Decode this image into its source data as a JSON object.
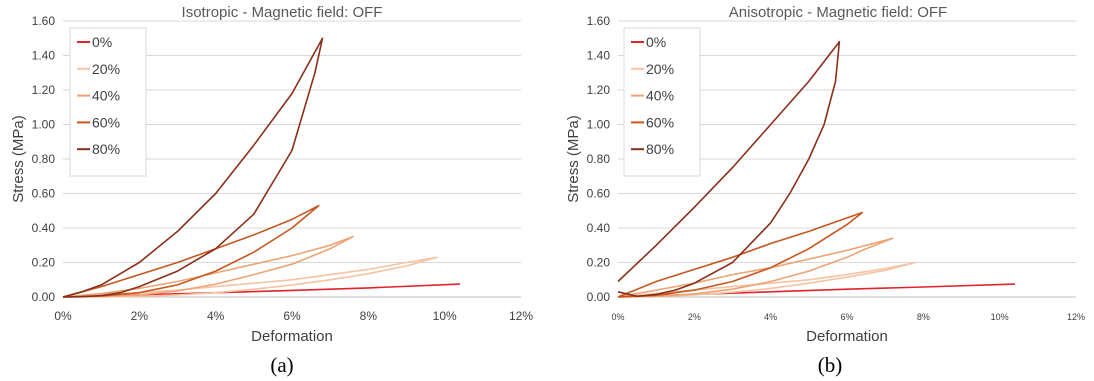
{
  "colors": {
    "0%": "#e0242b",
    "20%": "#f6c4a4",
    "40%": "#eda373",
    "60%": "#c7561f",
    "80%": "#8b2f19"
  },
  "chart_data": [
    {
      "type": "line",
      "title": "Isotropic - Magnetic field: OFF",
      "xlabel": "Deformation",
      "ylabel": "Stress (MPa)",
      "xlim": [
        0,
        0.12
      ],
      "ylim": [
        0,
        1.6
      ],
      "x_ticks": [
        "0%",
        "2%",
        "4%",
        "6%",
        "8%",
        "10%",
        "12%"
      ],
      "y_ticks": [
        "0.00",
        "0.20",
        "0.40",
        "0.60",
        "0.80",
        "1.00",
        "1.20",
        "1.40",
        "1.60"
      ],
      "legend": "top-left",
      "grid": true,
      "caption": "(a)",
      "series": [
        {
          "name": "0%",
          "x": [
            0,
            0.02,
            0.04,
            0.06,
            0.08,
            0.104
          ],
          "y": [
            0,
            0.012,
            0.025,
            0.038,
            0.053,
            0.075
          ]
        },
        {
          "name": "20%",
          "x": [
            0,
            0.01,
            0.02,
            0.03,
            0.04,
            0.05,
            0.06,
            0.07,
            0.08,
            0.09,
            0.098,
            0.09,
            0.08,
            0.07,
            0.06,
            0.05,
            0.04,
            0.03,
            0.02,
            0.01,
            0
          ],
          "y": [
            0,
            0.01,
            0.025,
            0.04,
            0.06,
            0.08,
            0.1,
            0.13,
            0.16,
            0.2,
            0.23,
            0.18,
            0.135,
            0.1,
            0.07,
            0.045,
            0.025,
            0.012,
            0.004,
            0.001,
            0
          ]
        },
        {
          "name": "40%",
          "x": [
            0,
            0.01,
            0.02,
            0.03,
            0.04,
            0.05,
            0.06,
            0.07,
            0.076,
            0.07,
            0.06,
            0.05,
            0.04,
            0.03,
            0.02,
            0.01,
            0
          ],
          "y": [
            0,
            0.02,
            0.05,
            0.09,
            0.14,
            0.19,
            0.24,
            0.3,
            0.35,
            0.28,
            0.19,
            0.13,
            0.075,
            0.035,
            0.012,
            0.003,
            0
          ]
        },
        {
          "name": "60%",
          "x": [
            0,
            0.005,
            0.01,
            0.02,
            0.03,
            0.04,
            0.05,
            0.06,
            0.067,
            0.06,
            0.05,
            0.04,
            0.03,
            0.02,
            0.01,
            0
          ],
          "y": [
            0,
            0.03,
            0.06,
            0.13,
            0.2,
            0.28,
            0.36,
            0.45,
            0.53,
            0.4,
            0.26,
            0.15,
            0.07,
            0.025,
            0.006,
            0
          ]
        },
        {
          "name": "80%",
          "x": [
            0,
            0.005,
            0.01,
            0.02,
            0.03,
            0.04,
            0.05,
            0.06,
            0.068,
            0.066,
            0.06,
            0.05,
            0.04,
            0.03,
            0.02,
            0.015,
            0.01,
            0.005,
            0
          ],
          "y": [
            0,
            0.03,
            0.07,
            0.2,
            0.38,
            0.6,
            0.88,
            1.18,
            1.5,
            1.3,
            0.85,
            0.48,
            0.28,
            0.15,
            0.06,
            0.025,
            0.008,
            0.002,
            0
          ]
        }
      ]
    },
    {
      "type": "line",
      "title": "Anisotropic - Magnetic field: OFF",
      "xlabel": "Deformation",
      "ylabel": "Stress (MPa)",
      "xlim": [
        0,
        0.12
      ],
      "ylim": [
        0,
        1.6
      ],
      "x_ticks": [
        "0%",
        "2%",
        "4%",
        "6%",
        "8%",
        "10%",
        "12%"
      ],
      "y_ticks": [
        "0.00",
        "0.20",
        "0.40",
        "0.60",
        "0.80",
        "1.00",
        "1.20",
        "1.40",
        "1.60"
      ],
      "legend": "top-left",
      "grid": true,
      "caption": "(b)",
      "series": [
        {
          "name": "0%",
          "x": [
            0,
            0.02,
            0.04,
            0.06,
            0.08,
            0.104
          ],
          "y": [
            0,
            0.015,
            0.03,
            0.045,
            0.058,
            0.075
          ]
        },
        {
          "name": "20%",
          "x": [
            0,
            0.01,
            0.02,
            0.03,
            0.04,
            0.05,
            0.06,
            0.07,
            0.078,
            0.07,
            0.06,
            0.05,
            0.04,
            0.03,
            0.02,
            0.01,
            0
          ],
          "y": [
            0,
            0.02,
            0.04,
            0.06,
            0.08,
            0.1,
            0.13,
            0.165,
            0.2,
            0.155,
            0.115,
            0.08,
            0.05,
            0.028,
            0.012,
            0.003,
            0
          ]
        },
        {
          "name": "40%",
          "x": [
            0,
            0.01,
            0.02,
            0.03,
            0.04,
            0.05,
            0.06,
            0.072,
            0.065,
            0.06,
            0.05,
            0.04,
            0.03,
            0.02,
            0.01,
            0
          ],
          "y": [
            0,
            0.04,
            0.08,
            0.13,
            0.17,
            0.22,
            0.27,
            0.34,
            0.28,
            0.23,
            0.15,
            0.09,
            0.045,
            0.018,
            0.004,
            0
          ]
        },
        {
          "name": "60%",
          "x": [
            0,
            0.01,
            0.02,
            0.03,
            0.04,
            0.05,
            0.064,
            0.06,
            0.05,
            0.04,
            0.03,
            0.02,
            0.01,
            0
          ],
          "y": [
            0,
            0.09,
            0.16,
            0.23,
            0.31,
            0.38,
            0.49,
            0.42,
            0.28,
            0.17,
            0.09,
            0.04,
            0.01,
            0
          ]
        },
        {
          "name": "80%",
          "x": [
            0,
            0.01,
            0.02,
            0.03,
            0.04,
            0.05,
            0.058,
            0.057,
            0.054,
            0.05,
            0.045,
            0.04,
            0.03,
            0.02,
            0.015,
            0.01,
            0.005,
            0
          ],
          "y": [
            0.09,
            0.3,
            0.52,
            0.75,
            1.0,
            1.25,
            1.48,
            1.25,
            1.0,
            0.8,
            0.6,
            0.43,
            0.2,
            0.08,
            0.04,
            0.015,
            0.004,
            0.03
          ]
        }
      ]
    }
  ]
}
